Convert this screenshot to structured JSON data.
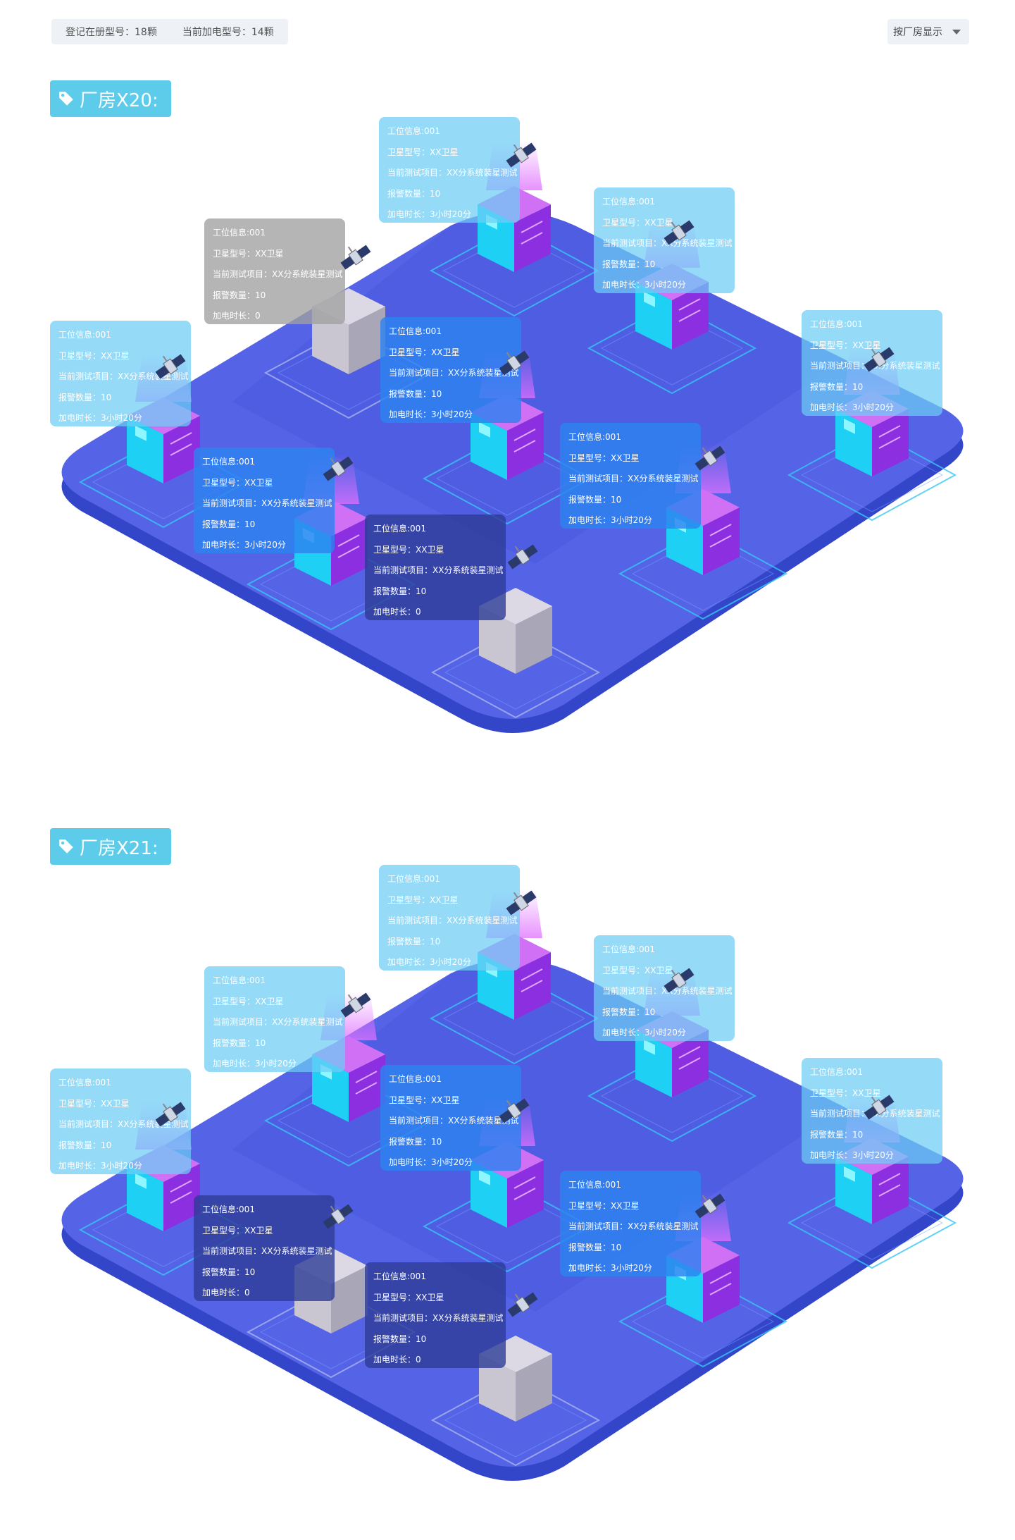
{
  "summary": {
    "registered_label": "登记在册型号：18颗",
    "powered_label": "当前加电型号：14颗"
  },
  "sort": {
    "label": "按厂房显示"
  },
  "icons": {
    "tag": "tag-icon",
    "caret": "caret-down-icon",
    "satellite": "satellite-icon"
  },
  "colors": {
    "board": "#5563e6",
    "tag": "#5dcbea",
    "cube_active": "#a040e8",
    "cube_idle": "#b7b4c4"
  },
  "factories": [
    {
      "title": "厂房X20:",
      "stations": [
        {
          "info": "工位信息:001",
          "model": "卫星型号：XX卫星",
          "project": "当前测试项目：XX分系统装星测试",
          "alarms": "报警数量：10",
          "duration": "加电时长：3小时20分"
        },
        {
          "info": "工位信息:001",
          "model": "卫星型号：XX卫星",
          "project": "当前测试项目：XX分系统装星测试",
          "alarms": "报警数量：10",
          "duration": "加电时长：3小时20分"
        },
        {
          "info": "工位信息:001",
          "model": "卫星型号：XX卫星",
          "project": "当前测试项目：XX分系统装星测试",
          "alarms": "报警数量：10",
          "duration": "加电时长：0"
        },
        {
          "info": "工位信息:001",
          "model": "卫星型号：XX卫星",
          "project": "当前测试项目：XX分系统装星测试",
          "alarms": "报警数量：10",
          "duration": "加电时长：3小时20分"
        },
        {
          "info": "工位信息:001",
          "model": "卫星型号：XX卫星",
          "project": "当前测试项目：XX分系统装星测试",
          "alarms": "报警数量：10",
          "duration": "加电时长：3小时20分"
        },
        {
          "info": "工位信息:001",
          "model": "卫星型号：XX卫星",
          "project": "当前测试项目：XX分系统装星测试",
          "alarms": "报警数量：10",
          "duration": "加电时长：3小时20分"
        },
        {
          "info": "工位信息:001",
          "model": "卫星型号：XX卫星",
          "project": "当前测试项目：XX分系统装星测试",
          "alarms": "报警数量：10",
          "duration": "加电时长：3小时20分"
        },
        {
          "info": "工位信息:001",
          "model": "卫星型号：XX卫星",
          "project": "当前测试项目：XX分系统装星测试",
          "alarms": "报警数量：10",
          "duration": "加电时长：3小时20分"
        },
        {
          "info": "工位信息:001",
          "model": "卫星型号：XX卫星",
          "project": "当前测试项目：XX分系统装星测试",
          "alarms": "报警数量：10",
          "duration": "加电时长：0"
        }
      ]
    },
    {
      "title": "厂房X21:",
      "stations": [
        {
          "info": "工位信息:001",
          "model": "卫星型号：XX卫星",
          "project": "当前测试项目：XX分系统装星测试",
          "alarms": "报警数量：10",
          "duration": "加电时长：3小时20分"
        },
        {
          "info": "工位信息:001",
          "model": "卫星型号：XX卫星",
          "project": "当前测试项目：XX分系统装星测试",
          "alarms": "报警数量：10",
          "duration": "加电时长：3小时20分"
        },
        {
          "info": "工位信息:001",
          "model": "卫星型号：XX卫星",
          "project": "当前测试项目：XX分系统装星测试",
          "alarms": "报警数量：10",
          "duration": "加电时长：3小时20分"
        },
        {
          "info": "工位信息:001",
          "model": "卫星型号：XX卫星",
          "project": "当前测试项目：XX分系统装星测试",
          "alarms": "报警数量：10",
          "duration": "加电时长：3小时20分"
        },
        {
          "info": "工位信息:001",
          "model": "卫星型号：XX卫星",
          "project": "当前测试项目：XX分系统装星测试",
          "alarms": "报警数量：10",
          "duration": "加电时长：3小时20分"
        },
        {
          "info": "工位信息:001",
          "model": "卫星型号：XX卫星",
          "project": "当前测试项目：XX分系统装星测试",
          "alarms": "报警数量：10",
          "duration": "加电时长：3小时20分"
        },
        {
          "info": "工位信息:001",
          "model": "卫星型号：XX卫星",
          "project": "当前测试项目：XX分系统装星测试",
          "alarms": "报警数量：10",
          "duration": "加电时长：3小时20分"
        },
        {
          "info": "工位信息:001",
          "model": "卫星型号：XX卫星",
          "project": "当前测试项目：XX分系统装星测试",
          "alarms": "报警数量：10",
          "duration": "加电时长：0"
        },
        {
          "info": "工位信息:001",
          "model": "卫星型号：XX卫星",
          "project": "当前测试项目：XX分系统装星测试",
          "alarms": "报警数量：10",
          "duration": "加电时长：0"
        }
      ]
    }
  ]
}
